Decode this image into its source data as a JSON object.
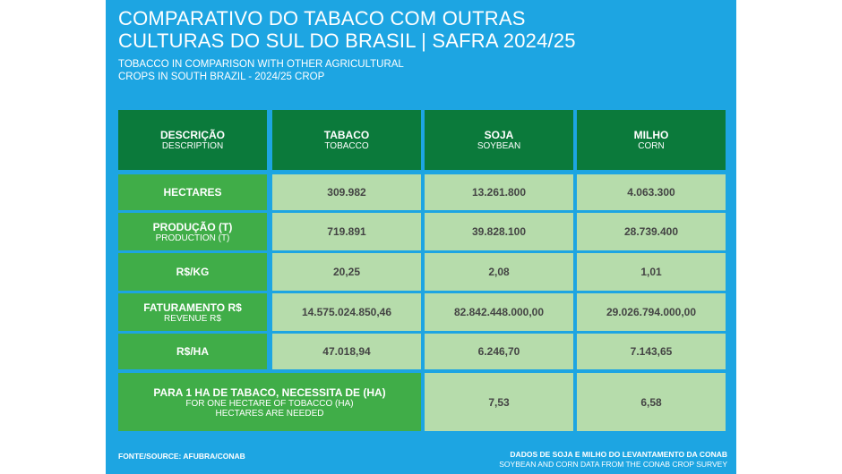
{
  "title": {
    "line1": "COMPARATIVO DO TABACO COM OUTRAS",
    "line2": "CULTURAS DO SUL DO BRASIL | SAFRA 2024/25"
  },
  "subtitle": {
    "line1": "TOBACCO IN COMPARISON WITH OTHER AGRICULTURAL",
    "line2": "CROPS IN SOUTH BRAZIL - 2024/25 CROP"
  },
  "headers": [
    {
      "pt": "DESCRIÇÃO",
      "en": "DESCRIPTION"
    },
    {
      "pt": "TABACO",
      "en": "TOBACCO"
    },
    {
      "pt": "SOJA",
      "en": "SOYBEAN"
    },
    {
      "pt": "MILHO",
      "en": "CORN"
    }
  ],
  "rows": [
    {
      "pt": "HECTARES",
      "en": "",
      "values": [
        "309.982",
        "13.261.800",
        "4.063.300"
      ]
    },
    {
      "pt": "PRODUÇÃO (T)",
      "en": "PRODUCTION (T)",
      "values": [
        "719.891",
        "39.828.100",
        "28.739.400"
      ]
    },
    {
      "pt": "R$/KG",
      "en": "",
      "values": [
        "20,25",
        "2,08",
        "1,01"
      ]
    },
    {
      "pt": "FATURAMENTO R$",
      "en": "REVENUE R$",
      "values": [
        "14.575.024.850,46",
        "82.842.448.000,00",
        "29.026.794.000,00"
      ]
    },
    {
      "pt": "R$/HA",
      "en": "",
      "values": [
        "47.018,94",
        "6.246,70",
        "7.143,65"
      ]
    }
  ],
  "last_row": {
    "pt": "PARA 1 HA DE TABACO, NECESSITA DE (HA)",
    "en1": "FOR ONE HECTARE OF TOBACCO (HA)",
    "en2": "HECTARES ARE NEEDED",
    "values": [
      "7,53",
      "6,58"
    ]
  },
  "footer": {
    "source": "FONTE/SOURCE: AFUBRA/CONAB",
    "note1": "DADOS DE SOJA E MILHO DO LEVANTAMENTO DA CONAB",
    "note2": "SOYBEAN AND CORN DATA FROM THE CONAB CROP SURVEY"
  }
}
